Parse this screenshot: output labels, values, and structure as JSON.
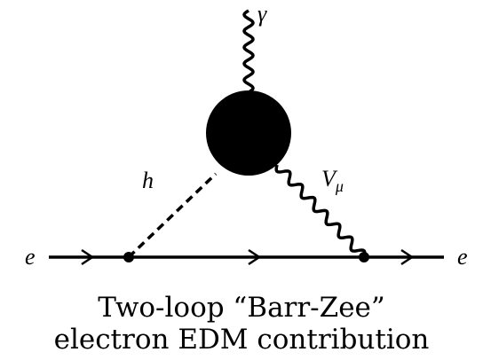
{
  "diagram": {
    "labels": {
      "photon": "γ",
      "higgs": "h",
      "vector": {
        "text": "V",
        "subscript": "μ"
      },
      "electron_in": "e",
      "electron_out": "e"
    },
    "caption": [
      "Two-loop “Barr-Zee”",
      "electron EDM contribution"
    ]
  }
}
